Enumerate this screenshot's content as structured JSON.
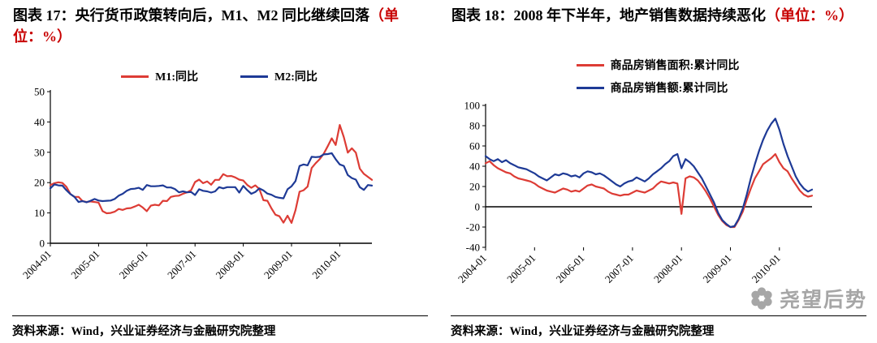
{
  "colors": {
    "red_line": "#dd3c35",
    "blue_line": "#1e3a96",
    "title_accent": "#c80000",
    "axis": "#000000",
    "watermark_gray": "#a6a6a6"
  },
  "left_panel": {
    "title_black": "图表 17：央行货币政策转向后，M1、M2 同比继续回落",
    "title_red": "（单位：%）",
    "source": "资料来源：Wind，兴业证券经济与金融研究院整理"
  },
  "right_panel": {
    "title_black": "图表 18：2008 年下半年，地产销售数据持续恶化",
    "title_red": "（单位：%）",
    "source": "资料来源：Wind，兴业证券经济与金融研究院整理"
  },
  "watermark": {
    "text": "尧望后势"
  },
  "chart_data": [
    {
      "type": "line",
      "title": "央行货币政策转向后，M1、M2同比继续回落（单位：%）",
      "x_range": [
        "2004-01",
        "2010-09"
      ],
      "x_interval": "monthly",
      "ylim": [
        0,
        50
      ],
      "yticks": [
        0,
        10,
        20,
        30,
        40,
        50
      ],
      "xticks": [
        {
          "index": 0,
          "label": "2004-01"
        },
        {
          "index": 12,
          "label": "2005-01"
        },
        {
          "index": 24,
          "label": "2006-01"
        },
        {
          "index": 36,
          "label": "2007-01"
        },
        {
          "index": 48,
          "label": "2008-01"
        },
        {
          "index": 60,
          "label": "2009-01"
        },
        {
          "index": 72,
          "label": "2010-01"
        }
      ],
      "grid": false,
      "legend_position": "top",
      "series": [
        {
          "name": "M1:同比",
          "color": "#dd3c35",
          "values": [
            19.2,
            19.8,
            20.1,
            19.9,
            18.6,
            16.2,
            15.3,
            15.3,
            13.9,
            13.6,
            13.8,
            13.6,
            13.4,
            10.6,
            9.9,
            10.0,
            10.4,
            11.3,
            11.0,
            11.5,
            11.6,
            12.1,
            12.7,
            11.8,
            10.6,
            12.4,
            12.7,
            12.5,
            14.0,
            13.9,
            15.3,
            15.6,
            15.7,
            16.3,
            16.8,
            17.5,
            20.2,
            21.0,
            19.8,
            20.4,
            19.3,
            20.9,
            20.9,
            22.8,
            22.1,
            22.2,
            21.7,
            21.0,
            20.7,
            19.2,
            18.3,
            19.1,
            17.9,
            14.2,
            14.0,
            11.5,
            9.4,
            8.9,
            6.8,
            9.1,
            6.7,
            10.9,
            17.0,
            17.5,
            18.7,
            24.8,
            26.4,
            27.7,
            29.5,
            32.0,
            34.6,
            32.4,
            39.0,
            35.0,
            29.9,
            31.3,
            29.9,
            24.6,
            22.9,
            21.9,
            20.9
          ]
        },
        {
          "name": "M2:同比",
          "color": "#1e3a96",
          "values": [
            18.1,
            19.4,
            19.1,
            19.0,
            17.5,
            16.2,
            15.3,
            13.6,
            13.9,
            13.5,
            14.0,
            14.6,
            14.1,
            13.9,
            14.0,
            14.1,
            14.6,
            15.7,
            16.3,
            17.3,
            17.9,
            18.0,
            18.3,
            17.6,
            19.2,
            18.8,
            18.8,
            18.9,
            19.1,
            18.4,
            18.4,
            17.9,
            16.8,
            17.1,
            16.8,
            16.9,
            15.9,
            17.8,
            17.3,
            17.1,
            16.7,
            17.1,
            18.5,
            18.1,
            18.5,
            18.5,
            18.5,
            16.7,
            18.9,
            17.5,
            16.3,
            16.9,
            18.1,
            17.4,
            16.4,
            16.0,
            15.3,
            15.0,
            14.8,
            17.8,
            18.8,
            20.5,
            25.5,
            26.0,
            25.7,
            28.5,
            28.4,
            28.5,
            29.3,
            29.4,
            29.7,
            27.7,
            26.0,
            25.5,
            22.5,
            21.5,
            21.0,
            18.5,
            17.6,
            19.2,
            19.0
          ]
        }
      ]
    },
    {
      "type": "line",
      "title": "2008年下半年，地产销售数据持续恶化（单位：%）",
      "x_range": [
        "2004-01",
        "2010-09"
      ],
      "x_interval": "monthly",
      "ylim": [
        -40,
        100
      ],
      "yticks": [
        -40,
        -20,
        0,
        20,
        40,
        60,
        80,
        100
      ],
      "xticks": [
        {
          "index": 0,
          "label": "2004-01"
        },
        {
          "index": 12,
          "label": "2005-01"
        },
        {
          "index": 24,
          "label": "2006-01"
        },
        {
          "index": 36,
          "label": "2007-01"
        },
        {
          "index": 48,
          "label": "2008-01"
        },
        {
          "index": 60,
          "label": "2009-01"
        },
        {
          "index": 72,
          "label": "2010-01"
        }
      ],
      "grid": false,
      "legend_position": "top",
      "series": [
        {
          "name": "商品房销售面积:累计同比",
          "color": "#dd3c35",
          "values": [
            43,
            45,
            41,
            38,
            36,
            34,
            33,
            30,
            28,
            27,
            26,
            25,
            23,
            20,
            18,
            16,
            15,
            14,
            16,
            18,
            17,
            15,
            16,
            15,
            18,
            21,
            22,
            20,
            19,
            18,
            15,
            13,
            12,
            11,
            12,
            12,
            14,
            16,
            15,
            14,
            16,
            18,
            22,
            25,
            24,
            23,
            24,
            23,
            -7,
            28,
            30,
            29,
            26,
            21,
            15,
            8,
            0,
            -8,
            -14,
            -18,
            -20,
            -20,
            -13,
            -5,
            7,
            18,
            28,
            35,
            42,
            45,
            48,
            52,
            44,
            38,
            35,
            28,
            22,
            16,
            12,
            10,
            11
          ]
        },
        {
          "name": "商品房销售额:累计同比",
          "color": "#1e3a96",
          "values": [
            50,
            47,
            45,
            47,
            44,
            46,
            43,
            41,
            39,
            38,
            37,
            35,
            33,
            30,
            28,
            26,
            29,
            32,
            31,
            33,
            32,
            30,
            31,
            29,
            33,
            35,
            34,
            32,
            33,
            31,
            28,
            25,
            22,
            20,
            23,
            25,
            26,
            29,
            27,
            25,
            28,
            32,
            35,
            38,
            42,
            45,
            50,
            52,
            38,
            47,
            44,
            40,
            34,
            28,
            20,
            12,
            4,
            -6,
            -13,
            -17,
            -20,
            -19,
            -12,
            -2,
            12,
            28,
            42,
            55,
            66,
            75,
            82,
            87,
            76,
            62,
            50,
            40,
            30,
            23,
            18,
            15,
            17
          ]
        }
      ]
    }
  ]
}
